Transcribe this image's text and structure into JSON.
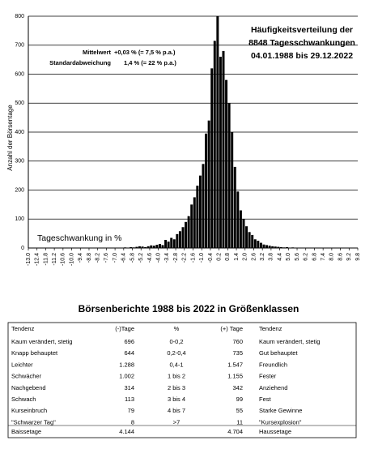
{
  "chart_data": {
    "type": "histogram",
    "title_lines": [
      "Häufigkeitsverteilung der",
      "8848 Tagesschwankungen",
      "04.01.1988 bis 29.12.2022"
    ],
    "annotations": [
      {
        "label": "Mittelwert",
        "text": "+0,03 % (= 7,5 % p.a.)"
      },
      {
        "label": "Standardabweichung",
        "text": "1,4 % (=  22 % p.a.)"
      }
    ],
    "xlabel": "Tageschwankung in %",
    "ylabel": "Anzahl der Börsentage",
    "bins": [
      -6.6,
      -6.4,
      -6.2,
      -6.0,
      -5.8,
      -5.6,
      -5.4,
      -5.2,
      -5.0,
      -4.8,
      -4.6,
      -4.4,
      -4.2,
      -4.0,
      -3.8,
      -3.6,
      -3.4,
      -3.2,
      -3.0,
      -2.8,
      -2.6,
      -2.4,
      -2.2,
      -2.0,
      -1.8,
      -1.6,
      -1.4,
      -1.2,
      -1.0,
      -0.8,
      -0.6,
      -0.4,
      -0.2,
      0.0,
      0.2,
      0.4,
      0.6,
      0.8,
      1.0,
      1.2,
      1.4,
      1.6,
      1.8,
      2.0,
      2.2,
      2.4,
      2.6,
      2.8,
      3.0,
      3.2,
      3.4,
      3.6,
      3.8,
      4.0,
      4.2,
      4.4,
      4.6,
      4.8,
      5.0,
      5.2,
      5.4,
      5.6,
      5.8,
      6.0,
      6.2,
      6.4,
      6.6,
      6.8,
      7.0,
      7.2,
      7.4
    ],
    "values": [
      1,
      2,
      1,
      3,
      2,
      4,
      6,
      5,
      3,
      6,
      9,
      8,
      11,
      14,
      10,
      28,
      22,
      35,
      30,
      48,
      58,
      72,
      90,
      110,
      150,
      175,
      215,
      250,
      290,
      395,
      440,
      620,
      715,
      800,
      660,
      680,
      580,
      500,
      400,
      280,
      195,
      130,
      100,
      75,
      55,
      45,
      30,
      25,
      18,
      12,
      10,
      8,
      6,
      5,
      4,
      3,
      2,
      3,
      1,
      2,
      1,
      0,
      1,
      0,
      1,
      0,
      1,
      0,
      1,
      1
    ],
    "color": "#000000",
    "xlim": [
      -13.0,
      9.8
    ],
    "xticks": [
      {
        "value": -13.0,
        "label": "-13.0"
      },
      -12.4,
      -11.8,
      -11.2,
      -10.6,
      {
        "value": -10.0,
        "label": "-10.0"
      },
      -9.4,
      -8.8,
      -8.2,
      -7.6,
      {
        "value": -7.0,
        "label": "-7.0"
      },
      -6.4,
      -5.8,
      -5.2,
      -4.6,
      {
        "value": -4.0,
        "label": "-4.0"
      },
      -3.4,
      -2.8,
      -2.2,
      -1.6,
      {
        "value": -1.0,
        "label": "-1.0"
      },
      -0.4,
      0.2,
      0.8,
      1.4,
      {
        "value": 2.0,
        "label": "2.0"
      },
      2.6,
      3.2,
      3.8,
      4.4,
      {
        "value": 5.0,
        "label": "5.0"
      },
      5.6,
      6.2,
      6.8,
      7.4,
      {
        "value": 8.0,
        "label": "8.0"
      },
      8.6,
      9.2,
      9.8
    ],
    "ylim": [
      0,
      800
    ],
    "yticks": [
      0,
      100,
      200,
      300,
      400,
      500,
      600,
      700,
      800
    ],
    "grid": true
  },
  "table": {
    "title": "Börsenberichte 1988 bis 2022 in Größenklassen",
    "header": [
      "Tendenz",
      "(-)Tage",
      "%",
      "(+) Tage",
      "Tendenz"
    ],
    "rows": [
      [
        "Kaum verändert, stetig",
        "696",
        "0-0,2",
        "760",
        "Kaum verändert, stetig"
      ],
      [
        "Knapp behauptet",
        "644",
        "0,2-0,4",
        "735",
        "Gut behauptet"
      ],
      [
        "Leichter",
        "1.288",
        "0,4-1",
        "1.547",
        "Freundlich"
      ],
      [
        "Schwächer",
        "1.002",
        "1 bis 2",
        "1.155",
        "Fester"
      ],
      [
        "Nachgebend",
        "314",
        "2 bis 3",
        "342",
        "Anziehend"
      ],
      [
        "Schwach",
        "113",
        "3 bis 4",
        "99",
        "Fest"
      ],
      [
        "Kurseinbruch",
        "79",
        "4 bis 7",
        "55",
        "Starke Gewinne"
      ],
      [
        "\"Schwarzer Tag\"",
        "8",
        ">7",
        "11",
        "\"Kursexplosion\""
      ]
    ],
    "footer": [
      "Baissetage",
      "4.144",
      "",
      "4.704",
      "Haussetage"
    ]
  }
}
